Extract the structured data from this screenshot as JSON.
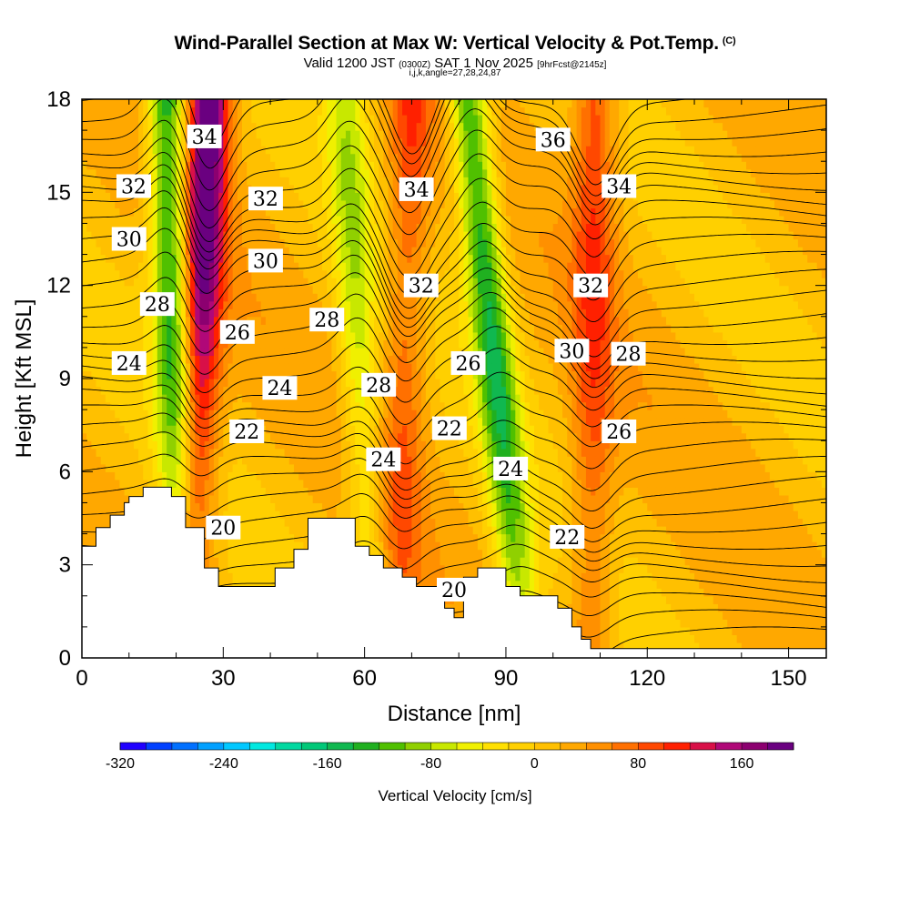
{
  "titles": {
    "main": "Wind-Parallel Section at Max W: Vertical Velocity & Pot.Temp.",
    "copyright": "(C)",
    "valid_prefix": "Valid 1200 JST",
    "valid_utc": "(0300Z)",
    "valid_date": "SAT 1 Nov 2025",
    "forecast": "[9hrFcst@2145z]",
    "indices": "i,j,k,angle=27,28,24,87"
  },
  "chart_data": {
    "type": "heatmap",
    "title": "Wind-Parallel Section at Max W: Vertical Velocity & Pot.Temp.",
    "xlabel": "Distance [nm]",
    "ylabel": "Height [Kft MSL]",
    "xlim": [
      0,
      158
    ],
    "ylim": [
      0,
      18
    ],
    "xticks": [
      0,
      30,
      60,
      90,
      120,
      150
    ],
    "yticks": [
      0,
      3,
      6,
      9,
      12,
      15,
      18
    ],
    "colorbar": {
      "title": "Vertical Velocity [cm/s]",
      "min": -320,
      "max": 200,
      "step": 20,
      "tick_values": [
        -320,
        -240,
        -160,
        -80,
        0,
        80,
        160
      ],
      "colors": [
        "#2000ff",
        "#0040ff",
        "#0070ff",
        "#00a0ff",
        "#00c8ff",
        "#00e8e0",
        "#00d8a0",
        "#00c878",
        "#10b850",
        "#20b020",
        "#50c000",
        "#90d000",
        "#c8e800",
        "#f0f000",
        "#ffe000",
        "#ffd000",
        "#ffc000",
        "#ffa800",
        "#ff9000",
        "#ff7000",
        "#ff4800",
        "#ff2000",
        "#d81048",
        "#b00878",
        "#8c0070",
        "#6a0080"
      ]
    },
    "potential_temperature_contours": {
      "unit": "K (labels as shown)",
      "labeled_levels": [
        {
          "value": "20",
          "x": 30,
          "y": 4.2
        },
        {
          "value": "20",
          "x": 79,
          "y": 2.2
        },
        {
          "value": "22",
          "x": 35,
          "y": 7.3
        },
        {
          "value": "22",
          "x": 78,
          "y": 7.4
        },
        {
          "value": "22",
          "x": 103,
          "y": 3.9
        },
        {
          "value": "24",
          "x": 10,
          "y": 9.5
        },
        {
          "value": "24",
          "x": 42,
          "y": 8.7
        },
        {
          "value": "24",
          "x": 64,
          "y": 6.4
        },
        {
          "value": "24",
          "x": 91,
          "y": 6.1
        },
        {
          "value": "26",
          "x": 33,
          "y": 10.5
        },
        {
          "value": "26",
          "x": 82,
          "y": 9.5
        },
        {
          "value": "26",
          "x": 114,
          "y": 7.3
        },
        {
          "value": "28",
          "x": 16,
          "y": 11.4
        },
        {
          "value": "28",
          "x": 52,
          "y": 10.9
        },
        {
          "value": "28",
          "x": 63,
          "y": 8.8
        },
        {
          "value": "28",
          "x": 116,
          "y": 9.8
        },
        {
          "value": "30",
          "x": 10,
          "y": 13.5
        },
        {
          "value": "30",
          "x": 39,
          "y": 12.8
        },
        {
          "value": "30",
          "x": 104,
          "y": 9.9
        },
        {
          "value": "32",
          "x": 11,
          "y": 15.2
        },
        {
          "value": "32",
          "x": 39,
          "y": 14.8
        },
        {
          "value": "32",
          "x": 72,
          "y": 12.0
        },
        {
          "value": "32",
          "x": 108,
          "y": 12.0
        },
        {
          "value": "34",
          "x": 26,
          "y": 16.8
        },
        {
          "value": "34",
          "x": 71,
          "y": 15.1
        },
        {
          "value": "34",
          "x": 114,
          "y": 15.2
        },
        {
          "value": "36",
          "x": 100,
          "y": 16.7
        }
      ]
    },
    "updrafts": [
      {
        "x_at_top": 27,
        "x_at_bottom": 22,
        "peak": 200
      },
      {
        "x_at_top": 70,
        "x_at_bottom": 67,
        "peak": 80
      },
      {
        "x_at_top": 109,
        "x_at_bottom": 108,
        "peak": 90
      }
    ],
    "downdrafts": [
      {
        "x_at_top": 18,
        "x_at_bottom": 22,
        "peak": -160
      },
      {
        "x_at_top": 56,
        "x_at_bottom": 62,
        "peak": -80
      },
      {
        "x_at_top": 82,
        "x_at_bottom": 94,
        "peak": -150
      }
    ],
    "terrain_kft": [
      [
        0,
        3.6
      ],
      [
        3,
        3.6
      ],
      [
        3,
        4.2
      ],
      [
        6,
        4.2
      ],
      [
        6,
        4.6
      ],
      [
        9,
        4.6
      ],
      [
        9,
        5.0
      ],
      [
        10,
        5.0
      ],
      [
        10,
        5.2
      ],
      [
        13,
        5.2
      ],
      [
        13,
        5.5
      ],
      [
        19,
        5.5
      ],
      [
        19,
        5.2
      ],
      [
        22,
        5.2
      ],
      [
        22,
        4.2
      ],
      [
        26,
        4.2
      ],
      [
        26,
        2.9
      ],
      [
        29,
        2.9
      ],
      [
        29,
        2.3
      ],
      [
        41,
        2.3
      ],
      [
        41,
        2.9
      ],
      [
        45,
        2.9
      ],
      [
        45,
        3.5
      ],
      [
        48,
        3.5
      ],
      [
        48,
        4.5
      ],
      [
        58,
        4.5
      ],
      [
        58,
        3.6
      ],
      [
        61,
        3.6
      ],
      [
        61,
        3.3
      ],
      [
        64,
        3.3
      ],
      [
        64,
        2.9
      ],
      [
        68,
        2.9
      ],
      [
        68,
        2.6
      ],
      [
        71,
        2.6
      ],
      [
        71,
        2.3
      ],
      [
        77,
        2.3
      ],
      [
        77,
        1.6
      ],
      [
        79,
        1.6
      ],
      [
        79,
        1.3
      ],
      [
        81,
        1.3
      ],
      [
        81,
        2.6
      ],
      [
        84,
        2.6
      ],
      [
        84,
        2.9
      ],
      [
        90,
        2.9
      ],
      [
        90,
        2.3
      ],
      [
        93,
        2.3
      ],
      [
        93,
        2.0
      ],
      [
        101,
        2.0
      ],
      [
        101,
        1.6
      ],
      [
        104,
        1.6
      ],
      [
        104,
        1.0
      ],
      [
        106,
        1.0
      ],
      [
        106,
        0.6
      ],
      [
        108,
        0.6
      ],
      [
        108,
        0.3
      ],
      [
        158,
        0.3
      ]
    ]
  }
}
